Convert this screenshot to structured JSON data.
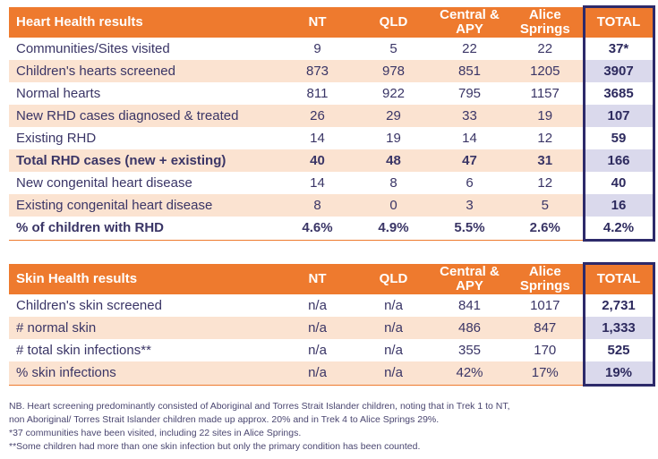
{
  "heart": {
    "title": "Heart Health results",
    "columns": [
      "NT",
      "QLD",
      "Central & APY",
      "Alice Springs",
      "TOTAL"
    ],
    "rows": [
      {
        "label": "Communities/Sites visited",
        "values": [
          "9",
          "5",
          "22",
          "22",
          "37*"
        ]
      },
      {
        "label": "Children's hearts screened",
        "values": [
          "873",
          "978",
          "851",
          "1205",
          "3907"
        ]
      },
      {
        "label": "Normal hearts",
        "values": [
          "811",
          "922",
          "795",
          "1157",
          "3685"
        ]
      },
      {
        "label": "New RHD cases diagnosed & treated",
        "values": [
          "26",
          "29",
          "33",
          "19",
          "107"
        ]
      },
      {
        "label": "Existing RHD",
        "values": [
          "14",
          "19",
          "14",
          "12",
          "59"
        ]
      },
      {
        "label": "Total RHD cases (new + existing)",
        "values": [
          "40",
          "48",
          "47",
          "31",
          "166"
        ]
      },
      {
        "label": "New congenital heart disease",
        "values": [
          "14",
          "8",
          "6",
          "12",
          "40"
        ]
      },
      {
        "label": "Existing congenital heart disease",
        "values": [
          "8",
          "0",
          "3",
          "5",
          "16"
        ]
      },
      {
        "label": "% of children with RHD",
        "values": [
          "4.6%",
          "4.9%",
          "5.5%",
          "2.6%",
          "4.2%"
        ]
      }
    ]
  },
  "skin": {
    "title": "Skin Health results",
    "columns": [
      "NT",
      "QLD",
      "Central & APY",
      "Alice Springs",
      "TOTAL"
    ],
    "rows": [
      {
        "label": "Children's skin screened",
        "values": [
          "n/a",
          "n/a",
          "841",
          "1017",
          "2,731"
        ]
      },
      {
        "label": "# normal skin",
        "values": [
          "n/a",
          "n/a",
          "486",
          "847",
          "1,333"
        ]
      },
      {
        "label": "# total skin infections**",
        "values": [
          "n/a",
          "n/a",
          "355",
          "170",
          "525"
        ]
      },
      {
        "label": "% skin infections",
        "values": [
          "n/a",
          "n/a",
          "42%",
          "17%",
          "19%"
        ]
      }
    ]
  },
  "notes": {
    "line1": "NB. Heart screening predominantly consisted of Aboriginal and Torres Strait Islander children, noting that in Trek 1 to NT,",
    "line2": "non Aboriginal/ Torres Strait Islander children made up approx. 20% and in Trek 4 to Alice Springs 29%.",
    "line3": "*37 communities have been visited, including 22 sites in Alice Springs.",
    "line4": "**Some children had more than one skin infection but only the primary condition has been counted."
  },
  "colors": {
    "header_orange": "#ee7a2e",
    "row_tint": "#fbe3d1",
    "total_border_navy": "#2d2a6a",
    "total_tint": "#dad9ec",
    "text_navy": "#3a3566"
  }
}
